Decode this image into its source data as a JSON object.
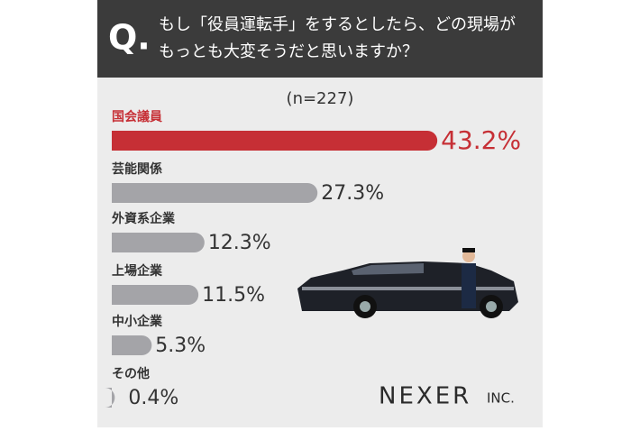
{
  "chart_data": {
    "type": "bar",
    "orientation": "horizontal",
    "question_mark": "Q.",
    "title_lines": [
      "もし「役員運転手」をするとしたら、どの現場が",
      "もっとも大変そうだと思いますか？"
    ],
    "subtitle": "(n=227)",
    "categories": [
      "国会議員",
      "芸能関係",
      "外資系企業",
      "上場企業",
      "中小企業",
      "その他"
    ],
    "values": [
      43.2,
      27.3,
      12.3,
      11.5,
      5.3,
      0.4
    ],
    "value_labels": [
      "43.2%",
      "27.3%",
      "12.3%",
      "11.5%",
      "5.3%",
      "0.4%"
    ],
    "color": "#a4a4a8",
    "highlight": 0,
    "highlight_color": "#c62f35",
    "logo": "NEXER",
    "logo_suffix": "INC."
  }
}
